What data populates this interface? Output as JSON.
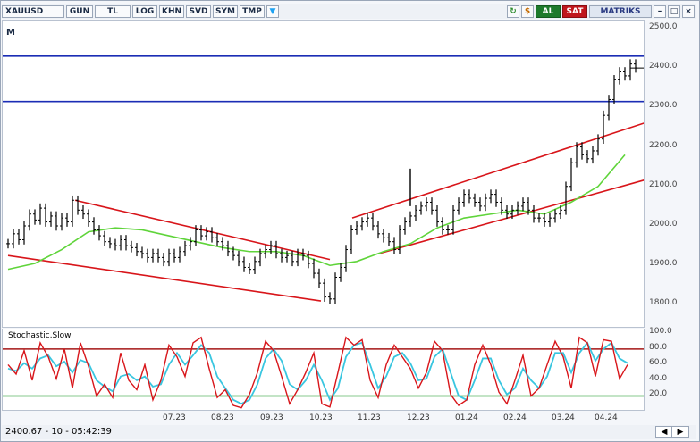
{
  "toolbar": {
    "symbol": "XAUUSD",
    "buttons": [
      "GUN",
      "TL",
      "LOG",
      "KHN",
      "SVD",
      "SYM",
      "TMP"
    ],
    "buy_label": "AL",
    "sell_label": "SAT",
    "brand": "MATRIKS"
  },
  "gutter_label": "M",
  "status": {
    "readout": "2400.67 - 10 - 05:42:39"
  },
  "colors": {
    "price": "#000000",
    "moving_average": "#5fd43a",
    "channel": "#d8151a",
    "level": "#1b2db5",
    "stoch_k": "#d8151a",
    "stoch_d": "#39c6e0",
    "stoch_high": "#a41616",
    "stoch_low": "#11951f"
  },
  "chart_data": [
    {
      "type": "line",
      "style": "ohlc-bars",
      "x_labels": [
        "07.23",
        "08.23",
        "09.23",
        "10.23",
        "11.23",
        "12.23",
        "01.24",
        "02.24",
        "03.24",
        "04.24"
      ],
      "y_ticks": [
        1800,
        1900,
        2000,
        2100,
        2200,
        2300,
        2400,
        2500
      ],
      "ylim": [
        1740,
        2520
      ],
      "grid": false,
      "series": [
        {
          "role": "price",
          "x": [
            0,
            6,
            12,
            18,
            24,
            30,
            36,
            42,
            48,
            54,
            60,
            66,
            72,
            78,
            84,
            90,
            96,
            102,
            108,
            114,
            120,
            126,
            132,
            138,
            144,
            150,
            156,
            162,
            168,
            174,
            180,
            186,
            192,
            198,
            204,
            210,
            216,
            222,
            228,
            234,
            240,
            246,
            252,
            258,
            264,
            270,
            276,
            282,
            288,
            294,
            300,
            306,
            312,
            318,
            324,
            330,
            336,
            342,
            348,
            354,
            360,
            366,
            372,
            378,
            384,
            390,
            396,
            402,
            408,
            414,
            420,
            426,
            432,
            438,
            444,
            450,
            456,
            462,
            468,
            474,
            480,
            486,
            492,
            498,
            504,
            510,
            516,
            522,
            528,
            534,
            540,
            546,
            552,
            558,
            564,
            570,
            576,
            582,
            588,
            594,
            600,
            606,
            612,
            618,
            624,
            630,
            636,
            642,
            648,
            654,
            660,
            666,
            672,
            678,
            684,
            690,
            696,
            702
          ],
          "values": [
            1955,
            1980,
            1965,
            2000,
            2030,
            2015,
            2045,
            2010,
            2025,
            2000,
            2020,
            2010,
            2065,
            2040,
            2030,
            2010,
            1990,
            1975,
            1960,
            1955,
            1950,
            1965,
            1950,
            1945,
            1935,
            1930,
            1920,
            1930,
            1920,
            1910,
            1930,
            1920,
            1935,
            1950,
            1960,
            1990,
            1975,
            1985,
            1970,
            1960,
            1950,
            1935,
            1925,
            1910,
            1895,
            1890,
            1910,
            1930,
            1940,
            1950,
            1930,
            1920,
            1925,
            1910,
            1930,
            1925,
            1905,
            1880,
            1855,
            1820,
            1815,
            1870,
            1895,
            1940,
            1990,
            2000,
            2010,
            2020,
            2000,
            1980,
            1970,
            1960,
            1940,
            1990,
            2010,
            2025,
            2040,
            2050,
            2060,
            2040,
            2010,
            1990,
            1990,
            2040,
            2060,
            2080,
            2070,
            2060,
            2050,
            2070,
            2080,
            2060,
            2040,
            2030,
            2040,
            2050,
            2060,
            2040,
            2020,
            2020,
            2010,
            2020,
            2030,
            2040,
            2100,
            2160,
            2200,
            2180,
            2170,
            2190,
            2220,
            2280,
            2320,
            2370,
            2390,
            2380,
            2410,
            2400
          ]
        },
        {
          "role": "moving_average",
          "x": [
            0,
            30,
            60,
            90,
            120,
            150,
            180,
            210,
            240,
            270,
            300,
            330,
            360,
            390,
            420,
            450,
            480,
            510,
            540,
            570,
            600,
            630,
            660,
            690
          ],
          "values": [
            1890,
            1905,
            1940,
            1985,
            1995,
            1990,
            1975,
            1960,
            1945,
            1935,
            1935,
            1925,
            1900,
            1910,
            1935,
            1955,
            1995,
            2020,
            2030,
            2040,
            2030,
            2060,
            2100,
            2180
          ]
        }
      ],
      "levels": [
        2430,
        2315
      ],
      "channels": [
        {
          "x": [
            75,
            360
          ],
          "values": [
            2065,
            1915
          ]
        },
        {
          "x": [
            0,
            350
          ],
          "values": [
            1925,
            1810
          ]
        },
        {
          "x": [
            385,
            718
          ],
          "values": [
            2020,
            2265
          ]
        },
        {
          "x": [
            415,
            718
          ],
          "values": [
            1930,
            2120
          ]
        }
      ]
    },
    {
      "type": "line",
      "title": "Stochastic,Slow",
      "y_ticks": [
        20,
        40,
        60,
        80,
        100
      ],
      "ylim": [
        0,
        105
      ],
      "levels": [
        80,
        20
      ],
      "series": [
        {
          "role": "stoch_k",
          "x": [
            0,
            9,
            18,
            27,
            36,
            45,
            54,
            63,
            72,
            81,
            90,
            99,
            108,
            117,
            126,
            135,
            144,
            153,
            162,
            171,
            180,
            189,
            198,
            207,
            216,
            225,
            234,
            243,
            252,
            261,
            270,
            279,
            288,
            297,
            306,
            315,
            324,
            333,
            342,
            351,
            360,
            369,
            378,
            387,
            396,
            405,
            414,
            423,
            432,
            441,
            450,
            459,
            468,
            477,
            486,
            495,
            504,
            513,
            522,
            531,
            540,
            549,
            558,
            567,
            576,
            585,
            594,
            603,
            612,
            621,
            630,
            639,
            648,
            657,
            666,
            675,
            684,
            693
          ],
          "values": [
            60,
            48,
            78,
            40,
            88,
            70,
            42,
            80,
            30,
            88,
            58,
            20,
            35,
            18,
            75,
            40,
            28,
            60,
            15,
            40,
            85,
            70,
            45,
            88,
            95,
            55,
            18,
            28,
            8,
            5,
            22,
            50,
            90,
            78,
            45,
            10,
            28,
            50,
            75,
            10,
            6,
            50,
            95,
            85,
            92,
            40,
            18,
            60,
            85,
            70,
            55,
            30,
            50,
            90,
            78,
            22,
            8,
            15,
            60,
            85,
            60,
            25,
            10,
            40,
            72,
            20,
            30,
            60,
            90,
            70,
            30,
            95,
            88,
            45,
            92,
            90,
            42,
            60
          ]
        },
        {
          "role": "stoch_d",
          "x": [
            0,
            9,
            18,
            27,
            36,
            45,
            54,
            63,
            72,
            81,
            90,
            99,
            108,
            117,
            126,
            135,
            144,
            153,
            162,
            171,
            180,
            189,
            198,
            207,
            216,
            225,
            234,
            243,
            252,
            261,
            270,
            279,
            288,
            297,
            306,
            315,
            324,
            333,
            342,
            351,
            360,
            369,
            378,
            387,
            396,
            405,
            414,
            423,
            432,
            441,
            450,
            459,
            468,
            477,
            486,
            495,
            504,
            513,
            522,
            531,
            540,
            549,
            558,
            567,
            576,
            585,
            594,
            603,
            612,
            621,
            630,
            639,
            648,
            657,
            666,
            675,
            684,
            693
          ],
          "values": [
            55,
            52,
            62,
            55,
            68,
            72,
            58,
            64,
            50,
            66,
            62,
            40,
            32,
            26,
            45,
            48,
            40,
            45,
            32,
            35,
            60,
            75,
            60,
            72,
            85,
            75,
            45,
            30,
            15,
            10,
            15,
            35,
            68,
            80,
            65,
            35,
            28,
            40,
            60,
            40,
            15,
            30,
            70,
            85,
            88,
            60,
            30,
            45,
            70,
            75,
            62,
            40,
            42,
            70,
            80,
            50,
            20,
            15,
            40,
            68,
            68,
            40,
            22,
            30,
            55,
            40,
            30,
            45,
            75,
            75,
            50,
            75,
            88,
            65,
            80,
            88,
            68,
            62
          ]
        }
      ]
    }
  ]
}
